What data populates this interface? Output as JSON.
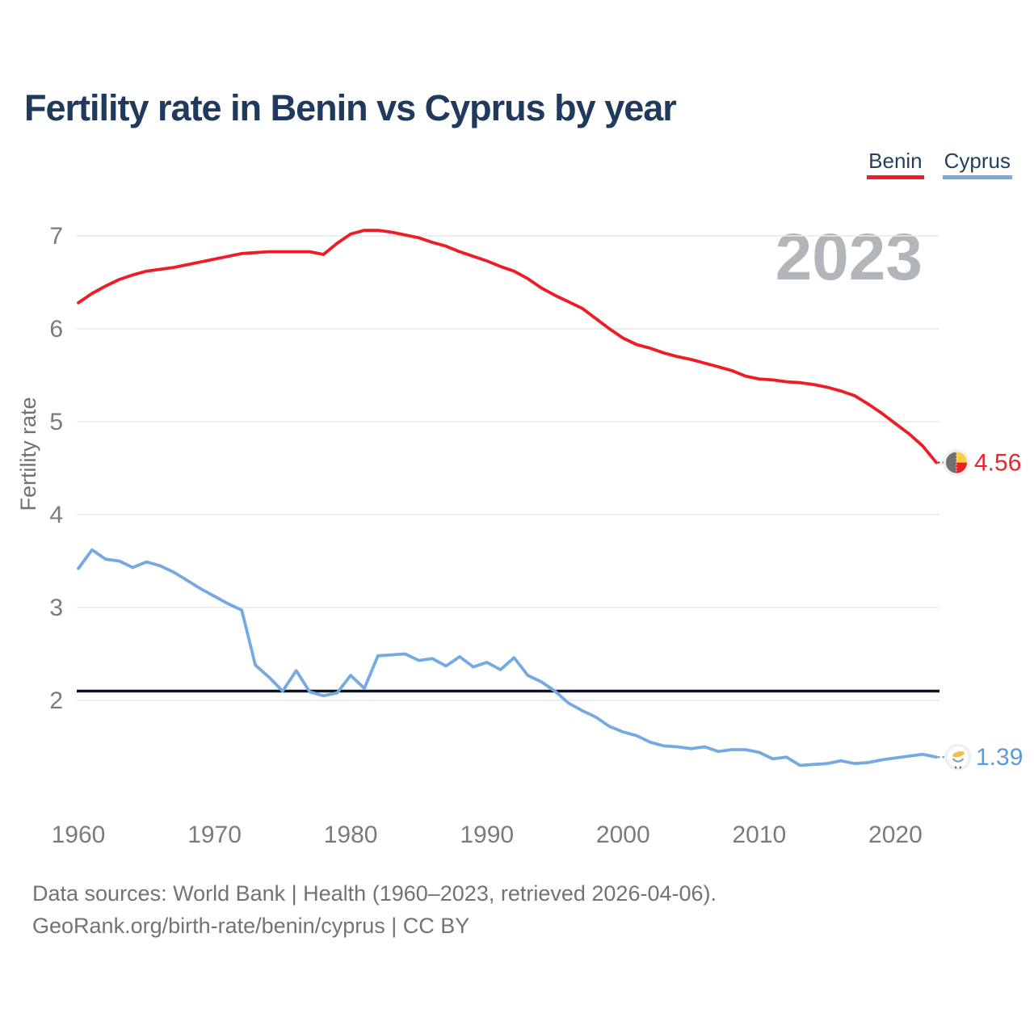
{
  "title": "Fertility rate in Benin vs Cyprus by year",
  "watermark": "2023",
  "legend": {
    "items": [
      {
        "label": "Benin",
        "color": "#ee1c25"
      },
      {
        "label": "Cyprus",
        "color": "#74aae1"
      }
    ]
  },
  "end_labels": {
    "benin": {
      "text": "4.56",
      "color": "#e9252c"
    },
    "cyprus": {
      "text": "1.39",
      "color": "#5b9bdb"
    }
  },
  "footer": {
    "line1": "Data sources: World Bank | Health (1960–2023, retrieved 2026-04-06).",
    "line2": "GeoRank.org/birth-rate/benin/cyprus | CC BY"
  },
  "colors": {
    "title": "#1f3a5c",
    "axis_text": "#7b7b7b",
    "axis_title": "#707070",
    "grid": "#e8e8e8",
    "watermark": "#b2b6ba",
    "reference_line": "#0c1421"
  },
  "chart_data": {
    "type": "line",
    "title": "Fertility rate in Benin vs Cyprus by year",
    "xlabel": "",
    "ylabel": "Fertility rate",
    "grid": true,
    "legend_position": "top-right",
    "ylim": [
      1.2,
      7.2
    ],
    "yticks": [
      2,
      3,
      4,
      5,
      6,
      7
    ],
    "xticks": [
      1960,
      1970,
      1980,
      1990,
      2000,
      2010,
      2020
    ],
    "reference_line": {
      "value": 2.1
    },
    "x": [
      1960,
      1961,
      1962,
      1963,
      1964,
      1965,
      1966,
      1967,
      1968,
      1969,
      1970,
      1971,
      1972,
      1973,
      1974,
      1975,
      1976,
      1977,
      1978,
      1979,
      1980,
      1981,
      1982,
      1983,
      1984,
      1985,
      1986,
      1987,
      1988,
      1989,
      1990,
      1991,
      1992,
      1993,
      1994,
      1995,
      1996,
      1997,
      1998,
      1999,
      2000,
      2001,
      2002,
      2003,
      2004,
      2005,
      2006,
      2007,
      2008,
      2009,
      2010,
      2011,
      2012,
      2013,
      2014,
      2015,
      2016,
      2017,
      2018,
      2019,
      2020,
      2021,
      2022,
      2023
    ],
    "series": [
      {
        "name": "Benin",
        "color": "#ee1c25",
        "end_label": "4.56",
        "values": [
          6.28,
          6.38,
          6.46,
          6.53,
          6.58,
          6.62,
          6.64,
          6.66,
          6.69,
          6.72,
          6.75,
          6.78,
          6.81,
          6.82,
          6.83,
          6.83,
          6.83,
          6.83,
          6.8,
          6.92,
          7.02,
          7.06,
          7.06,
          7.04,
          7.01,
          6.98,
          6.93,
          6.89,
          6.83,
          6.78,
          6.73,
          6.67,
          6.62,
          6.54,
          6.44,
          6.36,
          6.29,
          6.22,
          6.11,
          6.0,
          5.9,
          5.83,
          5.79,
          5.74,
          5.7,
          5.67,
          5.63,
          5.59,
          5.55,
          5.49,
          5.46,
          5.45,
          5.43,
          5.42,
          5.4,
          5.37,
          5.33,
          5.28,
          5.19,
          5.09,
          4.98,
          4.87,
          4.74,
          4.56
        ]
      },
      {
        "name": "Cyprus",
        "color": "#74aae1",
        "end_label": "1.39",
        "values": [
          3.42,
          3.62,
          3.52,
          3.5,
          3.43,
          3.49,
          3.45,
          3.38,
          3.29,
          3.2,
          3.12,
          3.04,
          2.97,
          2.38,
          2.25,
          2.1,
          2.32,
          2.09,
          2.05,
          2.08,
          2.27,
          2.13,
          2.48,
          2.49,
          2.5,
          2.43,
          2.45,
          2.37,
          2.47,
          2.36,
          2.41,
          2.33,
          2.46,
          2.27,
          2.2,
          2.1,
          1.97,
          1.89,
          1.82,
          1.72,
          1.66,
          1.62,
          1.55,
          1.51,
          1.5,
          1.48,
          1.5,
          1.45,
          1.47,
          1.47,
          1.44,
          1.37,
          1.39,
          1.3,
          1.31,
          1.32,
          1.35,
          1.32,
          1.33,
          1.36,
          1.38,
          1.4,
          1.42,
          1.39
        ]
      }
    ]
  }
}
